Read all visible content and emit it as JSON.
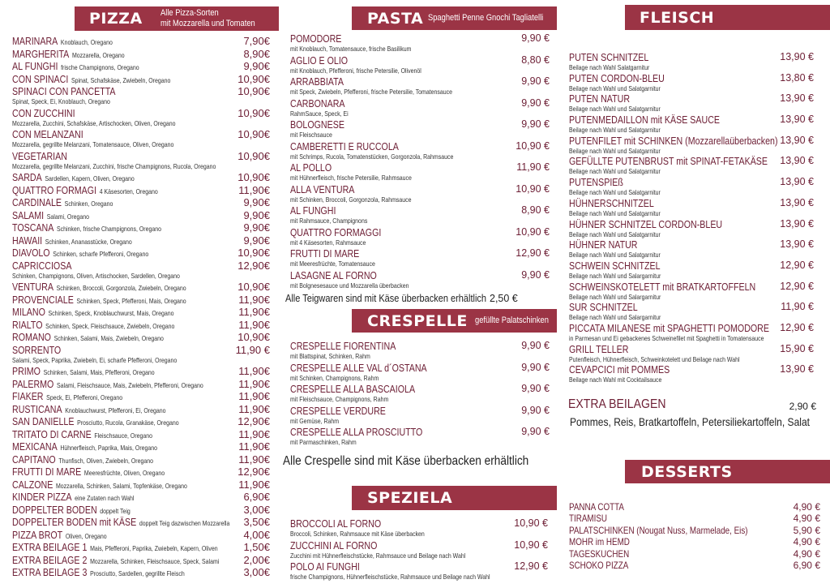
{
  "colors": {
    "header_bar": "#9b3445",
    "item_name": "#6e2036"
  },
  "pizza": {
    "title": "PIZZA",
    "subtitle_1": "Alle Pizza-Sorten",
    "subtitle_2": "mit Mozzarella und Tomaten",
    "items": [
      {
        "name": "MARINARA",
        "desc": "Knoblauch, Oregano",
        "price": "7,90€"
      },
      {
        "name": "MARGHERITA",
        "desc": "Mozzarella, Oregano",
        "price": "8,90€"
      },
      {
        "name": "AL FUNGHI",
        "desc": "frische Champignons, Oregano",
        "price": "9,90€"
      },
      {
        "name": "CON SPINACI",
        "desc": "Spinat, Schafskäse, Zwiebeln, Oregano",
        "price": "10,90€"
      },
      {
        "name": "SPINACI CON PANCETTA",
        "sub": "Spinat, Speck, Ei, Knoblauch, Oregano",
        "price": "10,90€"
      },
      {
        "name": "CON ZUCCHINI",
        "sub": "Mozzarella, Zucchini, Schafskäse, Artischocken, Oliven, Oregano",
        "price": "10,90€"
      },
      {
        "name": "CON MELANZANI",
        "sub": "Mozzarella, gegrillte Melanzani, Tomatensauce, Oliven, Oregano",
        "price": "10,90€"
      },
      {
        "name": "VEGETARIAN",
        "sub": "Mozzarella, gegrillte Melanzani, Zucchini, frische Champignons, Rucola, Oregano",
        "price": "10,90€"
      },
      {
        "name": "SARDA",
        "desc": "Sardellen, Kapern, Oliven,  Oregano",
        "price": "10,90€"
      },
      {
        "name": "QUATTRO FORMAGI",
        "desc": "4 Käsesorten, Oregano",
        "price": "11,90€"
      },
      {
        "name": "CARDINALE",
        "desc": "Schinken, Oregano",
        "price": "9,90€"
      },
      {
        "name": "SALAMI",
        "desc": "Salami, Oregano",
        "price": "9,90€"
      },
      {
        "name": "TOSCANA",
        "desc": "Schinken, frische Champignons, Oregano",
        "price": "9,90€"
      },
      {
        "name": "HAWAII",
        "desc": "Schinken, Ananasstücke, Oregano",
        "price": "9,90€"
      },
      {
        "name": "DIAVOLO",
        "desc": "Schinken, scharfe Pfefferoni, Oregano",
        "price": "10,90€"
      },
      {
        "name": "CAPRICCIOSA",
        "sub": "Schinken, Champignons, Oliven, Artischocken, Sardellen, Oregano",
        "price": "12,90€"
      },
      {
        "name": "VENTURA",
        "desc": "Schinken, Broccoli, Gorgonzola, Zwiebeln, Oregano",
        "price": "10,90€"
      },
      {
        "name": "PROVENCIALE",
        "desc": "Schinken, Speck, Pfefferoni, Mais, Oregano",
        "price": "11,90€"
      },
      {
        "name": "MILANO",
        "desc": "Schinken, Speck, Knoblauchwurst, Mais, Oregano",
        "price": "11,90€"
      },
      {
        "name": "RIALTO",
        "desc": "Schinken, Speck, Fleischsauce, Zwiebeln, Oregano",
        "price": "11,90€"
      },
      {
        "name": "ROMANO",
        "desc": "Schinken, Salami, Mais, Zwiebeln, Oregano",
        "price": "10,90€"
      },
      {
        "name": "SORRENTO",
        "sub": "Salami, Speck, Paprika, Zwiebeln, Ei, scharfe Pfefferoni, Oregano",
        "price": "11,90 €"
      },
      {
        "name": "PRIMO",
        "desc": "Schinken, Salami, Mais, Pfefferoni, Oregano",
        "price": "11,90€"
      },
      {
        "name": "PALERMO",
        "desc": "Salami, Fleischsauce, Mais, Zwiebeln, Pfefferoni, Oregano",
        "price": "11,90€"
      },
      {
        "name": "FIAKER",
        "desc": "Speck, Ei, Pfefferoni, Oregano",
        "price": "11,90€"
      },
      {
        "name": "RUSTICANA",
        "desc": "Knoblauchwurst, Pfefferoni, Ei, Oregano",
        "price": "11,90€"
      },
      {
        "name": "SAN DANIELLE",
        "desc": "Prosciutto, Rucola, Granakäse, Oregano",
        "price": "12,90€"
      },
      {
        "name": "TRITATO DI CARNE",
        "desc": "Fleischsauce, Oregano",
        "price": "11,90€"
      },
      {
        "name": "MEXICANA",
        "desc": "Hühnerfleisch, Paprika, Mais, Oregano",
        "price": "11,90€"
      },
      {
        "name": "CAPITANO",
        "desc": "Thunfisch, Oliven, Zwiebeln, Oregano",
        "price": "11,90€"
      },
      {
        "name": "FRUTTI DI MARE",
        "desc": "Meeresfrüchte, Oliven,  Oregano",
        "price": "12,90€"
      },
      {
        "name": "CALZONE",
        "desc": "Mozzarella, Schinken, Salami, Topfenkäse, Oregano",
        "price": "11,90€"
      },
      {
        "name": "KINDER PIZZA",
        "desc": "eine Zutaten nach Wahl",
        "price": "6,90€"
      },
      {
        "name": "DOPPELTER BODEN",
        "desc": "doppelt Teig",
        "price": "3,00€"
      },
      {
        "name": "DOPPELTER BODEN mit KÄSE",
        "desc": "doppelt Teig dazwischen Mozzarella",
        "price": "3,50€"
      },
      {
        "name": "PIZZA BROT",
        "desc": "Oliven, Oregano",
        "price": "4,00€"
      },
      {
        "name": "EXTRA BEILAGE 1",
        "desc": "Mais, Pfefferoni, Paprika, Zwiebeln, Kapern, Oliven",
        "price": "1,50€"
      },
      {
        "name": "EXTRA BEILAGE 2",
        "desc": "Mozzarella, Schinken, Fleischsauce, Speck, Salami",
        "price": "2,00€"
      },
      {
        "name": "EXTRA BEILAGE 3",
        "desc": "Prosciutto, Sardellen, gegrillte Fleisch",
        "price": "3,00€"
      }
    ]
  },
  "pasta": {
    "title": "PASTA",
    "subtitle": "Spaghetti Penne Gnochi Tagliatelli",
    "items": [
      {
        "name": "POMODORE",
        "sub": "mit Knoblauch, Tomatensauce, frische Basilikum",
        "price": "9,90 €"
      },
      {
        "name": "AGLIO E OLIO",
        "sub": "mit Knoblauch, Pfefferoni, frische Petersilie, Olivenöl",
        "price": "8,80 €"
      },
      {
        "name": "ARRABBIATA",
        "sub": "mit Speck, Zwiebeln, Pfefferoni, frische Petersilie, Tomatensauce",
        "price": "9,90 €"
      },
      {
        "name": "CARBONARA",
        "sub": "RahmSauce, Speck, Ei",
        "price": "9,90 €"
      },
      {
        "name": "BOLOGNESE",
        "sub": "mit Fleischsauce",
        "price": "9,90 €"
      },
      {
        "name": "CAMBERETTI E RUCCOLA",
        "sub": "mit Schrimps, Rucola, Tomatenstücken, Gorgonzola, Rahmsauce",
        "price": "10,90 €"
      },
      {
        "name": "AL POLLO",
        "sub": "mit Hühnerfleisch, frische Petersilie, Rahmsauce",
        "price": "11,90 €"
      },
      {
        "name": "ALLA VENTURA",
        "sub": "mit Schinken, Broccoli, Gorgonzola, Rahmsauce",
        "price": "10,90 €"
      },
      {
        "name": "AL FUNGHI",
        "sub": "mit Rahmsauce, Champignons",
        "price": "8,90 €"
      },
      {
        "name": "QUATTRO FORMAGGI",
        "sub": "mit 4 Käsesorten, Rahmsauce",
        "price": "10,90 €"
      },
      {
        "name": "FRUTTI DI MARE",
        "sub": "mit Meeresfrüchte, Tomatensauce",
        "price": "12,90 €"
      },
      {
        "name": "LASAGNE AL FORNO",
        "sub": "mit Bolgnesesauce und Mozzarella überbacken",
        "price": "9,90 €"
      }
    ],
    "note": "Alle Teigwaren sind mit Käse überbacken erhältlich",
    "note_price": "2,50 €"
  },
  "crespelle": {
    "title": "CRESPELLE",
    "subtitle": "gefüllte Palatschinken",
    "items": [
      {
        "name": "CRESPELLE FIORENTINA",
        "sub": "mit Blattspinat, Schinken, Rahm",
        "price": "9,90 €"
      },
      {
        "name": "CRESPELLE ALLE VAL d´OSTANA",
        "sub": "mit Schinken, Champignons, Rahm",
        "price": "9,90 €"
      },
      {
        "name": "CRESPELLE ALLA BASCAIOLA",
        "sub": "mit Fleischsauce, Champignons, Rahm",
        "price": "9,90 €"
      },
      {
        "name": "CRESPELLE VERDURE",
        "sub": "mit Gemüse, Rahm",
        "price": "9,90 €"
      },
      {
        "name": "CRESPELLE ALLA PROSCIUTTO",
        "sub": "mit Parmaschinken, Rahm",
        "price": "9,90 €"
      }
    ],
    "note": "Alle Crespelle sind mit Käse überbacken erhältlich"
  },
  "speziela": {
    "title": "SPEZIELA",
    "items": [
      {
        "name": "BROCCOLI AL FORNO",
        "sub": "Broccoli, Schinken, Rahmsauce mit Käse überbacken",
        "price": "10,90 €"
      },
      {
        "name": "ZUCCHINI AL FORNO",
        "sub": "Zucchini mit Hühnerfleischstücke, Rahmsauce und Beilage nach Wahl",
        "price": "10,90 €"
      },
      {
        "name": "POLO AI FUNGHI",
        "sub": "frische Champignons, Hühnerfleischstücke, Rahmsauce und Beilage nach Wahl",
        "price": "12,90 €"
      }
    ]
  },
  "fleisch": {
    "title": "FLEISCH",
    "items": [
      {
        "name": "PUTEN SCHNITZEL",
        "sub": "Beilage nach Wahl Salatgarnitur",
        "price": "13,90 €"
      },
      {
        "name": "PUTEN CORDON-BLEU",
        "sub": "Beilage nach Wahl und Salatgarnitur",
        "price": "13,80  €"
      },
      {
        "name": "PUTEN NATUR",
        "sub": "Beilage nach Wahl und Salatgarnitur",
        "price": "13,90  €"
      },
      {
        "name": "PUTENMEDAILLON mit KÄSE SAUCE",
        "sub": "Beilage nach Wahl und Salatgarnitur",
        "price": "13,90  €"
      },
      {
        "name": "PUTENFILET mit SCHINKEN (Mozzarellaüberbacken)",
        "sub": "Beilage nach Wahl und Salatgarnitur",
        "price": "13,90  €"
      },
      {
        "name": "GEFÜLLTE PUTENBRUST mit SPINAT-FETAKÄSE",
        "sub": "Beilage nach Wahl und Salatgarnitur",
        "price": "13,90  €"
      },
      {
        "name": "PUTENSPIEß",
        "sub": "Beilage nach Wahl und Salatgarnitur",
        "price": "13,90  €"
      },
      {
        "name": "HÜHNERSCHNITZEL",
        "sub": "Beilage nach Wahl und Salatgarnitur",
        "price": "13,90  €"
      },
      {
        "name": "HÜHNER SCHNITZEL CORDON-BLEU",
        "sub": "Beilage nach Wahl und Salatgarnitur",
        "price": "13,90  €"
      },
      {
        "name": "HÜHNER NATUR",
        "sub": "Beilage nach Wahl und Salatgarnitur",
        "price": "13,90  €"
      },
      {
        "name": "SCHWEIN SCHNITZEL",
        "sub": "Beilage nach Wahl und Salargarnitur",
        "price": "12,90  €"
      },
      {
        "name": "SCHWEINSKOTELETT mit BRATKARTOFFELN",
        "sub": "Beilage nach Wahl und Salargarnitur",
        "price": "12,90  €"
      },
      {
        "name": "SUR SCHNITZEL",
        "sub": "Beilage nach Wahl und Salargarnitur",
        "price": "11,90  €"
      },
      {
        "name": "PICCATA MILANESE mit SPAGHETTI POMODORE",
        "sub": "in Parmesan und Ei gebackenes Schweinefilet mit Spaghetti in Tomatensauce",
        "price": "12,90  €"
      },
      {
        "name": "GRILL TELLER",
        "sub": "Putenfleisch, Hühnerfleisch, Schweinkotelett und Beilage nach Wahl",
        "price": "15,90  €"
      },
      {
        "name": "CEVAPCICI mit POMMES",
        "sub": "Beilage nach Wahl mit Cocktailsauce",
        "price": "13,90  €"
      }
    ],
    "extra_title": "EXTRA BEILAGEN",
    "extra_price": "2,90 €",
    "extra_list": "Pommes, Reis, Bratkartoffeln, Petersiliekartoffeln, Salat"
  },
  "desserts": {
    "title": "DESSERTS",
    "items": [
      {
        "name": "PANNA COTTA",
        "price": "4,90 €"
      },
      {
        "name": "TIRAMISU",
        "price": "4,90 €"
      },
      {
        "name": "PALATSCHINKEN (Nougat Nuss, Marmelade, Eis)",
        "price": "5,90 €"
      },
      {
        "name": "MOHR im HEMD",
        "price": "4,90 €"
      },
      {
        "name": "TAGESKUCHEN",
        "price": "4,90 €"
      },
      {
        "name": "SCHOKO PIZZA",
        "price": "6,90 €"
      }
    ]
  }
}
